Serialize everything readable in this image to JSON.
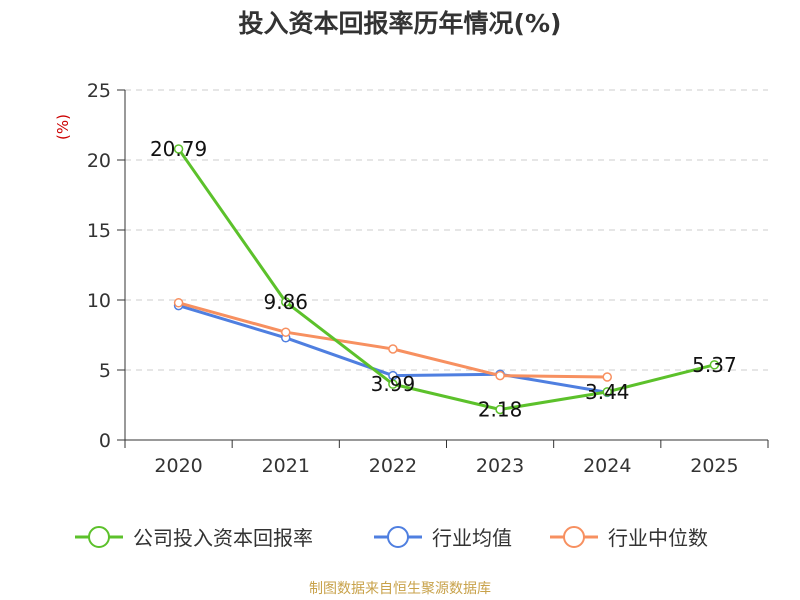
{
  "chart_data": {
    "type": "line",
    "title": "投入资本回报率历年情况(%)",
    "ylabel": "(%)",
    "xlabel": "",
    "ylim": [
      0,
      25
    ],
    "yticks": [
      0,
      5,
      10,
      15,
      20,
      25
    ],
    "grid": true,
    "legend_position": "bottom",
    "categories": [
      "2020",
      "2021",
      "2022",
      "2023",
      "2024",
      "2025"
    ],
    "series": [
      {
        "name": "公司投入资本回报率",
        "color": "#5cc12b",
        "values": [
          20.79,
          9.86,
          3.99,
          2.18,
          3.44,
          5.37
        ],
        "labels": [
          "20.79",
          "9.86",
          "3.99",
          "2.18",
          "3.44",
          "5.37"
        ]
      },
      {
        "name": "行业均值",
        "color": "#4f7fe0",
        "values": [
          9.6,
          7.3,
          4.6,
          4.7,
          3.4,
          null
        ],
        "labels": []
      },
      {
        "name": "行业中位数",
        "color": "#f79060",
        "values": [
          9.8,
          7.7,
          6.5,
          4.6,
          4.5,
          null
        ],
        "labels": []
      }
    ]
  },
  "source": "制图数据来自恒生聚源数据库"
}
